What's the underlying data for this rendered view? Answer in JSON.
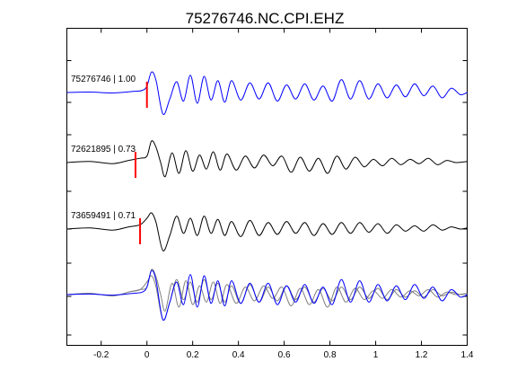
{
  "chart_data": {
    "type": "line",
    "title": "75276746.NC.CPI.EHZ",
    "xlabel": "",
    "ylabel": "",
    "xlim": [
      -0.35,
      1.4
    ],
    "x_ticks": [
      -0.2,
      0,
      0.2,
      0.4,
      0.6,
      0.8,
      1,
      1.2,
      1.4
    ],
    "x_tick_labels": [
      "-0.2",
      "0",
      "0.2",
      "0.4",
      "0.6",
      "0.8",
      "1",
      "1.2",
      "1.4"
    ],
    "grid": false,
    "colors": {
      "reference": "#0000ff",
      "trace": "#000000",
      "overlay": "#808080",
      "pick": "#ff0000"
    },
    "traces": [
      {
        "label": "75276746 | 1.00",
        "id": "75276746",
        "correlation": 1.0,
        "color": "#0000ff",
        "pick_time": 0.0,
        "times": [
          -0.35,
          -0.25,
          -0.15,
          -0.06,
          -0.02,
          0.0,
          0.02,
          0.04,
          0.07,
          0.1,
          0.13,
          0.16,
          0.19,
          0.22,
          0.25,
          0.28,
          0.31,
          0.34,
          0.37,
          0.41,
          0.45,
          0.49,
          0.53,
          0.57,
          0.61,
          0.65,
          0.69,
          0.73,
          0.77,
          0.81,
          0.85,
          0.89,
          0.93,
          0.97,
          1.01,
          1.05,
          1.09,
          1.13,
          1.17,
          1.21,
          1.25,
          1.29,
          1.33,
          1.37,
          1.4
        ],
        "values": [
          0.0,
          0.02,
          -0.02,
          0.05,
          0.1,
          0.3,
          0.95,
          0.55,
          -1.0,
          -0.3,
          0.5,
          -0.4,
          0.8,
          -0.5,
          0.75,
          -0.35,
          0.55,
          -0.45,
          0.55,
          -0.35,
          0.45,
          -0.3,
          0.45,
          -0.4,
          0.35,
          -0.3,
          0.4,
          -0.35,
          0.3,
          -0.4,
          0.6,
          -0.3,
          0.55,
          -0.3,
          0.4,
          -0.25,
          0.35,
          -0.2,
          0.4,
          -0.15,
          0.3,
          -0.25,
          0.2,
          -0.1,
          0.0
        ]
      },
      {
        "label": "72621895 | 0.73",
        "id": "72621895",
        "correlation": 0.73,
        "color": "#000000",
        "pick_time": -0.05,
        "times": [
          -0.35,
          -0.25,
          -0.15,
          -0.08,
          -0.03,
          0.0,
          0.02,
          0.04,
          0.06,
          0.08,
          0.11,
          0.14,
          0.17,
          0.2,
          0.23,
          0.26,
          0.29,
          0.32,
          0.35,
          0.39,
          0.43,
          0.47,
          0.51,
          0.55,
          0.59,
          0.63,
          0.67,
          0.71,
          0.75,
          0.79,
          0.83,
          0.87,
          0.91,
          0.95,
          0.99,
          1.03,
          1.07,
          1.11,
          1.15,
          1.19,
          1.23,
          1.27,
          1.31,
          1.35,
          1.4
        ],
        "values": [
          0.0,
          0.05,
          -0.05,
          0.1,
          0.2,
          0.3,
          1.0,
          0.7,
          0.0,
          -0.65,
          0.45,
          -0.5,
          0.55,
          -0.4,
          0.35,
          -0.3,
          0.5,
          -0.35,
          0.4,
          -0.35,
          0.3,
          -0.25,
          0.35,
          -0.15,
          0.3,
          -0.45,
          0.25,
          -0.4,
          0.2,
          -0.5,
          0.3,
          -0.3,
          0.25,
          -0.2,
          0.15,
          -0.15,
          0.2,
          -0.1,
          0.15,
          -0.05,
          0.2,
          -0.1,
          0.1,
          0.0,
          0.05
        ]
      },
      {
        "label": "73659491 | 0.71",
        "id": "73659491",
        "correlation": 0.71,
        "color": "#000000",
        "pick_time": -0.03,
        "times": [
          -0.35,
          -0.25,
          -0.15,
          -0.08,
          -0.03,
          0.0,
          0.02,
          0.04,
          0.07,
          0.1,
          0.13,
          0.16,
          0.19,
          0.22,
          0.25,
          0.28,
          0.31,
          0.34,
          0.37,
          0.41,
          0.45,
          0.49,
          0.53,
          0.57,
          0.61,
          0.65,
          0.69,
          0.73,
          0.77,
          0.81,
          0.85,
          0.89,
          0.93,
          0.97,
          1.01,
          1.05,
          1.09,
          1.13,
          1.17,
          1.21,
          1.25,
          1.29,
          1.33,
          1.37,
          1.4
        ],
        "values": [
          0.0,
          0.05,
          -0.05,
          0.1,
          0.2,
          0.5,
          0.75,
          0.3,
          -1.0,
          -0.3,
          0.6,
          -0.2,
          0.5,
          -0.3,
          0.6,
          -0.2,
          0.45,
          -0.3,
          0.35,
          -0.35,
          0.4,
          -0.3,
          0.3,
          -0.25,
          0.35,
          -0.2,
          0.3,
          -0.3,
          0.25,
          -0.25,
          0.3,
          -0.2,
          0.3,
          -0.15,
          0.25,
          -0.2,
          0.2,
          -0.1,
          0.15,
          -0.1,
          0.2,
          -0.05,
          0.1,
          0.0,
          0.05
        ]
      }
    ]
  }
}
